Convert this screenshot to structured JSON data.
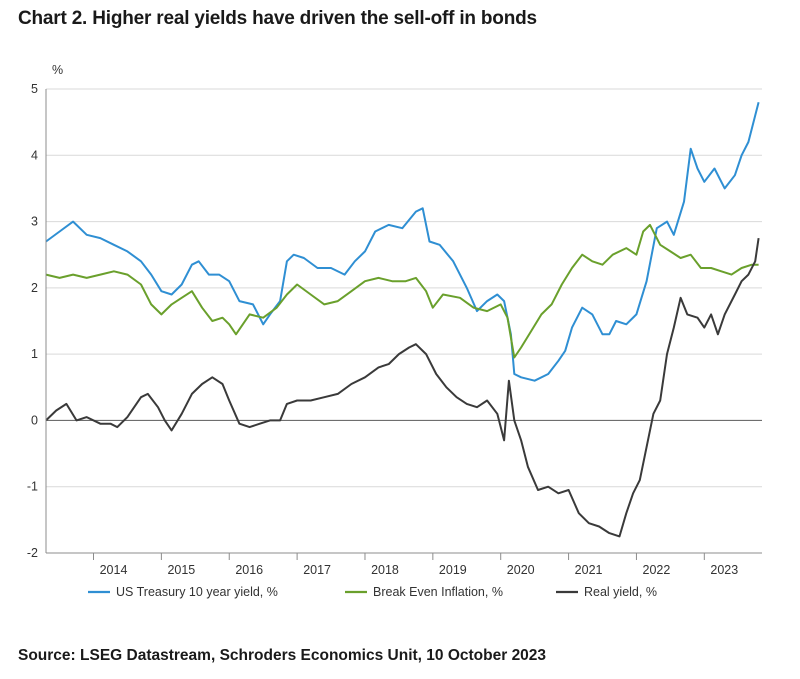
{
  "chart_data": {
    "type": "line",
    "title": "Chart 2. Higher real yields have driven the sell-off in bonds",
    "ylabel": "%",
    "xlabel": "",
    "source": "Source: LSEG Datastream, Schroders Economics Unit, 10 October 2023",
    "x_range": [
      2013.3,
      2023.85
    ],
    "ylim": [
      -2,
      5
    ],
    "yticks": [
      -2,
      -1,
      0,
      1,
      2,
      3,
      4,
      5
    ],
    "x_tick_labels": [
      "2014",
      "2015",
      "2016",
      "2017",
      "2018",
      "2019",
      "2020",
      "2021",
      "2022",
      "2023"
    ],
    "x_tick_positions": [
      2014.0,
      2015.0,
      2016.0,
      2017.0,
      2018.0,
      2019.0,
      2020.0,
      2021.0,
      2022.0,
      2023.0
    ],
    "grid": true,
    "legend_position": "bottom",
    "series": [
      {
        "name": "US Treasury 10 year yield, %",
        "color": "#2f8fd3",
        "points": [
          [
            2013.3,
            2.7
          ],
          [
            2013.5,
            2.85
          ],
          [
            2013.7,
            3.0
          ],
          [
            2013.9,
            2.8
          ],
          [
            2014.1,
            2.75
          ],
          [
            2014.3,
            2.65
          ],
          [
            2014.5,
            2.55
          ],
          [
            2014.7,
            2.4
          ],
          [
            2014.85,
            2.2
          ],
          [
            2015.0,
            1.95
          ],
          [
            2015.15,
            1.9
          ],
          [
            2015.3,
            2.05
          ],
          [
            2015.45,
            2.35
          ],
          [
            2015.55,
            2.4
          ],
          [
            2015.7,
            2.2
          ],
          [
            2015.85,
            2.2
          ],
          [
            2016.0,
            2.1
          ],
          [
            2016.15,
            1.8
          ],
          [
            2016.35,
            1.75
          ],
          [
            2016.5,
            1.45
          ],
          [
            2016.6,
            1.6
          ],
          [
            2016.75,
            1.8
          ],
          [
            2016.85,
            2.4
          ],
          [
            2016.95,
            2.5
          ],
          [
            2017.1,
            2.45
          ],
          [
            2017.3,
            2.3
          ],
          [
            2017.5,
            2.3
          ],
          [
            2017.7,
            2.2
          ],
          [
            2017.85,
            2.4
          ],
          [
            2018.0,
            2.55
          ],
          [
            2018.15,
            2.85
          ],
          [
            2018.35,
            2.95
          ],
          [
            2018.55,
            2.9
          ],
          [
            2018.75,
            3.15
          ],
          [
            2018.85,
            3.2
          ],
          [
            2018.95,
            2.7
          ],
          [
            2019.1,
            2.65
          ],
          [
            2019.3,
            2.4
          ],
          [
            2019.5,
            2.0
          ],
          [
            2019.65,
            1.65
          ],
          [
            2019.8,
            1.8
          ],
          [
            2019.95,
            1.9
          ],
          [
            2020.05,
            1.8
          ],
          [
            2020.15,
            1.3
          ],
          [
            2020.2,
            0.7
          ],
          [
            2020.3,
            0.65
          ],
          [
            2020.5,
            0.6
          ],
          [
            2020.7,
            0.7
          ],
          [
            2020.85,
            0.9
          ],
          [
            2020.95,
            1.05
          ],
          [
            2021.05,
            1.4
          ],
          [
            2021.2,
            1.7
          ],
          [
            2021.35,
            1.6
          ],
          [
            2021.5,
            1.3
          ],
          [
            2021.6,
            1.3
          ],
          [
            2021.7,
            1.5
          ],
          [
            2021.85,
            1.45
          ],
          [
            2022.0,
            1.6
          ],
          [
            2022.15,
            2.1
          ],
          [
            2022.3,
            2.9
          ],
          [
            2022.45,
            3.0
          ],
          [
            2022.55,
            2.8
          ],
          [
            2022.7,
            3.3
          ],
          [
            2022.8,
            4.1
          ],
          [
            2022.9,
            3.8
          ],
          [
            2023.0,
            3.6
          ],
          [
            2023.15,
            3.8
          ],
          [
            2023.3,
            3.5
          ],
          [
            2023.45,
            3.7
          ],
          [
            2023.55,
            4.0
          ],
          [
            2023.65,
            4.2
          ],
          [
            2023.75,
            4.6
          ],
          [
            2023.8,
            4.8
          ]
        ]
      },
      {
        "name": "Break Even Inflation, %",
        "color": "#6aa02c",
        "points": [
          [
            2013.3,
            2.2
          ],
          [
            2013.5,
            2.15
          ],
          [
            2013.7,
            2.2
          ],
          [
            2013.9,
            2.15
          ],
          [
            2014.1,
            2.2
          ],
          [
            2014.3,
            2.25
          ],
          [
            2014.5,
            2.2
          ],
          [
            2014.7,
            2.05
          ],
          [
            2014.85,
            1.75
          ],
          [
            2015.0,
            1.6
          ],
          [
            2015.15,
            1.75
          ],
          [
            2015.3,
            1.85
          ],
          [
            2015.45,
            1.95
          ],
          [
            2015.6,
            1.7
          ],
          [
            2015.75,
            1.5
          ],
          [
            2015.9,
            1.55
          ],
          [
            2016.0,
            1.45
          ],
          [
            2016.1,
            1.3
          ],
          [
            2016.3,
            1.6
          ],
          [
            2016.5,
            1.55
          ],
          [
            2016.7,
            1.7
          ],
          [
            2016.85,
            1.9
          ],
          [
            2017.0,
            2.05
          ],
          [
            2017.2,
            1.9
          ],
          [
            2017.4,
            1.75
          ],
          [
            2017.6,
            1.8
          ],
          [
            2017.8,
            1.95
          ],
          [
            2018.0,
            2.1
          ],
          [
            2018.2,
            2.15
          ],
          [
            2018.4,
            2.1
          ],
          [
            2018.6,
            2.1
          ],
          [
            2018.75,
            2.15
          ],
          [
            2018.9,
            1.95
          ],
          [
            2019.0,
            1.7
          ],
          [
            2019.15,
            1.9
          ],
          [
            2019.4,
            1.85
          ],
          [
            2019.6,
            1.7
          ],
          [
            2019.8,
            1.65
          ],
          [
            2020.0,
            1.75
          ],
          [
            2020.1,
            1.55
          ],
          [
            2020.2,
            0.95
          ],
          [
            2020.3,
            1.1
          ],
          [
            2020.45,
            1.35
          ],
          [
            2020.6,
            1.6
          ],
          [
            2020.75,
            1.75
          ],
          [
            2020.9,
            2.05
          ],
          [
            2021.05,
            2.3
          ],
          [
            2021.2,
            2.5
          ],
          [
            2021.35,
            2.4
          ],
          [
            2021.5,
            2.35
          ],
          [
            2021.65,
            2.5
          ],
          [
            2021.85,
            2.6
          ],
          [
            2022.0,
            2.5
          ],
          [
            2022.1,
            2.85
          ],
          [
            2022.2,
            2.95
          ],
          [
            2022.35,
            2.65
          ],
          [
            2022.5,
            2.55
          ],
          [
            2022.65,
            2.45
          ],
          [
            2022.8,
            2.5
          ],
          [
            2022.95,
            2.3
          ],
          [
            2023.1,
            2.3
          ],
          [
            2023.25,
            2.25
          ],
          [
            2023.4,
            2.2
          ],
          [
            2023.55,
            2.3
          ],
          [
            2023.7,
            2.35
          ],
          [
            2023.8,
            2.35
          ]
        ]
      },
      {
        "name": "Real yield, %",
        "color": "#3a3a3a",
        "points": [
          [
            2013.3,
            0.0
          ],
          [
            2013.45,
            0.15
          ],
          [
            2013.6,
            0.25
          ],
          [
            2013.75,
            0.0
          ],
          [
            2013.9,
            0.05
          ],
          [
            2014.1,
            -0.05
          ],
          [
            2014.25,
            -0.05
          ],
          [
            2014.35,
            -0.1
          ],
          [
            2014.5,
            0.05
          ],
          [
            2014.7,
            0.35
          ],
          [
            2014.8,
            0.4
          ],
          [
            2014.95,
            0.2
          ],
          [
            2015.05,
            0.0
          ],
          [
            2015.15,
            -0.15
          ],
          [
            2015.3,
            0.1
          ],
          [
            2015.45,
            0.4
          ],
          [
            2015.6,
            0.55
          ],
          [
            2015.75,
            0.65
          ],
          [
            2015.9,
            0.55
          ],
          [
            2016.0,
            0.3
          ],
          [
            2016.15,
            -0.05
          ],
          [
            2016.3,
            -0.1
          ],
          [
            2016.45,
            -0.05
          ],
          [
            2016.6,
            0.0
          ],
          [
            2016.75,
            0.0
          ],
          [
            2016.85,
            0.25
          ],
          [
            2017.0,
            0.3
          ],
          [
            2017.2,
            0.3
          ],
          [
            2017.4,
            0.35
          ],
          [
            2017.6,
            0.4
          ],
          [
            2017.8,
            0.55
          ],
          [
            2018.0,
            0.65
          ],
          [
            2018.2,
            0.8
          ],
          [
            2018.35,
            0.85
          ],
          [
            2018.5,
            1.0
          ],
          [
            2018.65,
            1.1
          ],
          [
            2018.75,
            1.15
          ],
          [
            2018.9,
            1.0
          ],
          [
            2019.05,
            0.7
          ],
          [
            2019.2,
            0.5
          ],
          [
            2019.35,
            0.35
          ],
          [
            2019.5,
            0.25
          ],
          [
            2019.65,
            0.2
          ],
          [
            2019.8,
            0.3
          ],
          [
            2019.95,
            0.1
          ],
          [
            2020.05,
            -0.3
          ],
          [
            2020.12,
            0.6
          ],
          [
            2020.2,
            0.0
          ],
          [
            2020.3,
            -0.3
          ],
          [
            2020.4,
            -0.7
          ],
          [
            2020.55,
            -1.05
          ],
          [
            2020.7,
            -1.0
          ],
          [
            2020.85,
            -1.1
          ],
          [
            2021.0,
            -1.05
          ],
          [
            2021.15,
            -1.4
          ],
          [
            2021.3,
            -1.55
          ],
          [
            2021.45,
            -1.6
          ],
          [
            2021.6,
            -1.7
          ],
          [
            2021.75,
            -1.75
          ],
          [
            2021.85,
            -1.4
          ],
          [
            2021.95,
            -1.1
          ],
          [
            2022.05,
            -0.9
          ],
          [
            2022.15,
            -0.4
          ],
          [
            2022.25,
            0.1
          ],
          [
            2022.35,
            0.3
          ],
          [
            2022.45,
            1.0
          ],
          [
            2022.55,
            1.4
          ],
          [
            2022.65,
            1.85
          ],
          [
            2022.75,
            1.6
          ],
          [
            2022.9,
            1.55
          ],
          [
            2023.0,
            1.4
          ],
          [
            2023.1,
            1.6
          ],
          [
            2023.2,
            1.3
          ],
          [
            2023.3,
            1.6
          ],
          [
            2023.45,
            1.9
          ],
          [
            2023.55,
            2.1
          ],
          [
            2023.65,
            2.2
          ],
          [
            2023.75,
            2.4
          ],
          [
            2023.8,
            2.75
          ]
        ]
      }
    ]
  }
}
